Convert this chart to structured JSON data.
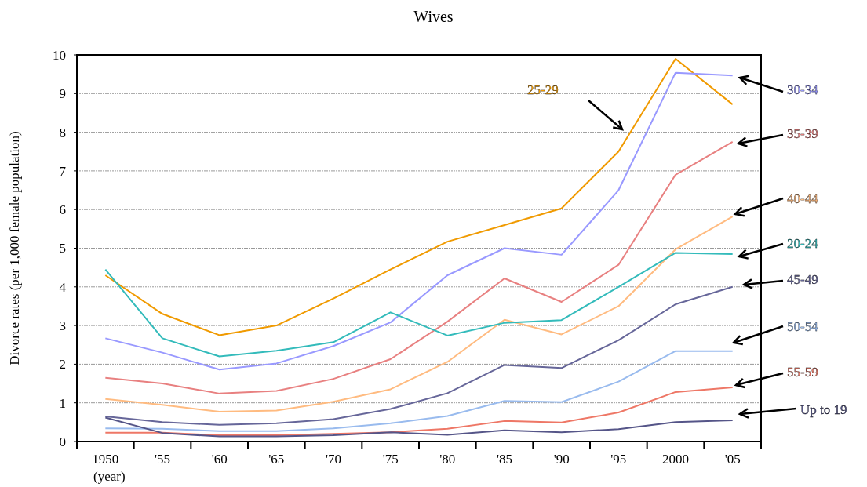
{
  "chart_data": {
    "type": "line",
    "title": "Wives",
    "ylabel": "Divorce rates (per 1,000 female population)",
    "annotations": [
      "(year)"
    ],
    "categories": [
      "1950",
      "'55",
      "'60",
      "'65",
      "'70",
      "'75",
      "'80",
      "'85",
      "'90",
      "'95",
      "2000",
      "'05"
    ],
    "ylim": [
      0,
      10
    ],
    "yticks": [
      0,
      1,
      2,
      3,
      4,
      5,
      6,
      7,
      8,
      9,
      10
    ],
    "grid": "y",
    "legend": false,
    "marker": "none",
    "series": [
      {
        "name": "25-29",
        "color": "#f09a00",
        "values": [
          4.3,
          3.3,
          2.75,
          3.0,
          3.7,
          4.45,
          5.17,
          5.6,
          6.03,
          7.5,
          9.9,
          8.72
        ]
      },
      {
        "name": "30-34",
        "color": "#9999ff",
        "values": [
          2.67,
          2.3,
          1.86,
          2.02,
          2.47,
          3.08,
          4.3,
          5.0,
          4.83,
          6.5,
          9.54,
          9.47
        ]
      },
      {
        "name": "35-39",
        "color": "#e88080",
        "values": [
          1.65,
          1.5,
          1.24,
          1.31,
          1.62,
          2.13,
          3.1,
          4.22,
          3.61,
          4.57,
          6.9,
          7.75
        ]
      },
      {
        "name": "40-44",
        "color": "#ffbb80",
        "values": [
          1.1,
          0.95,
          0.77,
          0.8,
          1.03,
          1.35,
          2.06,
          3.15,
          2.77,
          3.5,
          4.97,
          5.82
        ]
      },
      {
        "name": "20-24",
        "color": "#33bbbb",
        "values": [
          4.45,
          2.67,
          2.2,
          2.35,
          2.57,
          3.34,
          2.74,
          3.07,
          3.14,
          4.0,
          4.88,
          4.85
        ]
      },
      {
        "name": "45-49",
        "color": "#666699",
        "values": [
          0.65,
          0.5,
          0.43,
          0.47,
          0.58,
          0.84,
          1.25,
          1.98,
          1.9,
          2.62,
          3.55,
          4.0
        ]
      },
      {
        "name": "50-54",
        "color": "#99bbee",
        "values": [
          0.34,
          0.33,
          0.27,
          0.27,
          0.34,
          0.47,
          0.66,
          1.05,
          1.02,
          1.55,
          2.34,
          2.34
        ]
      },
      {
        "name": "55-59",
        "color": "#ee7766",
        "values": [
          0.23,
          0.23,
          0.16,
          0.16,
          0.2,
          0.24,
          0.33,
          0.53,
          0.49,
          0.75,
          1.28,
          1.4
        ]
      },
      {
        "name": "Up to 19",
        "color": "#555588",
        "values": [
          0.62,
          0.22,
          0.13,
          0.13,
          0.16,
          0.24,
          0.17,
          0.29,
          0.24,
          0.32,
          0.5,
          0.55
        ]
      }
    ]
  }
}
